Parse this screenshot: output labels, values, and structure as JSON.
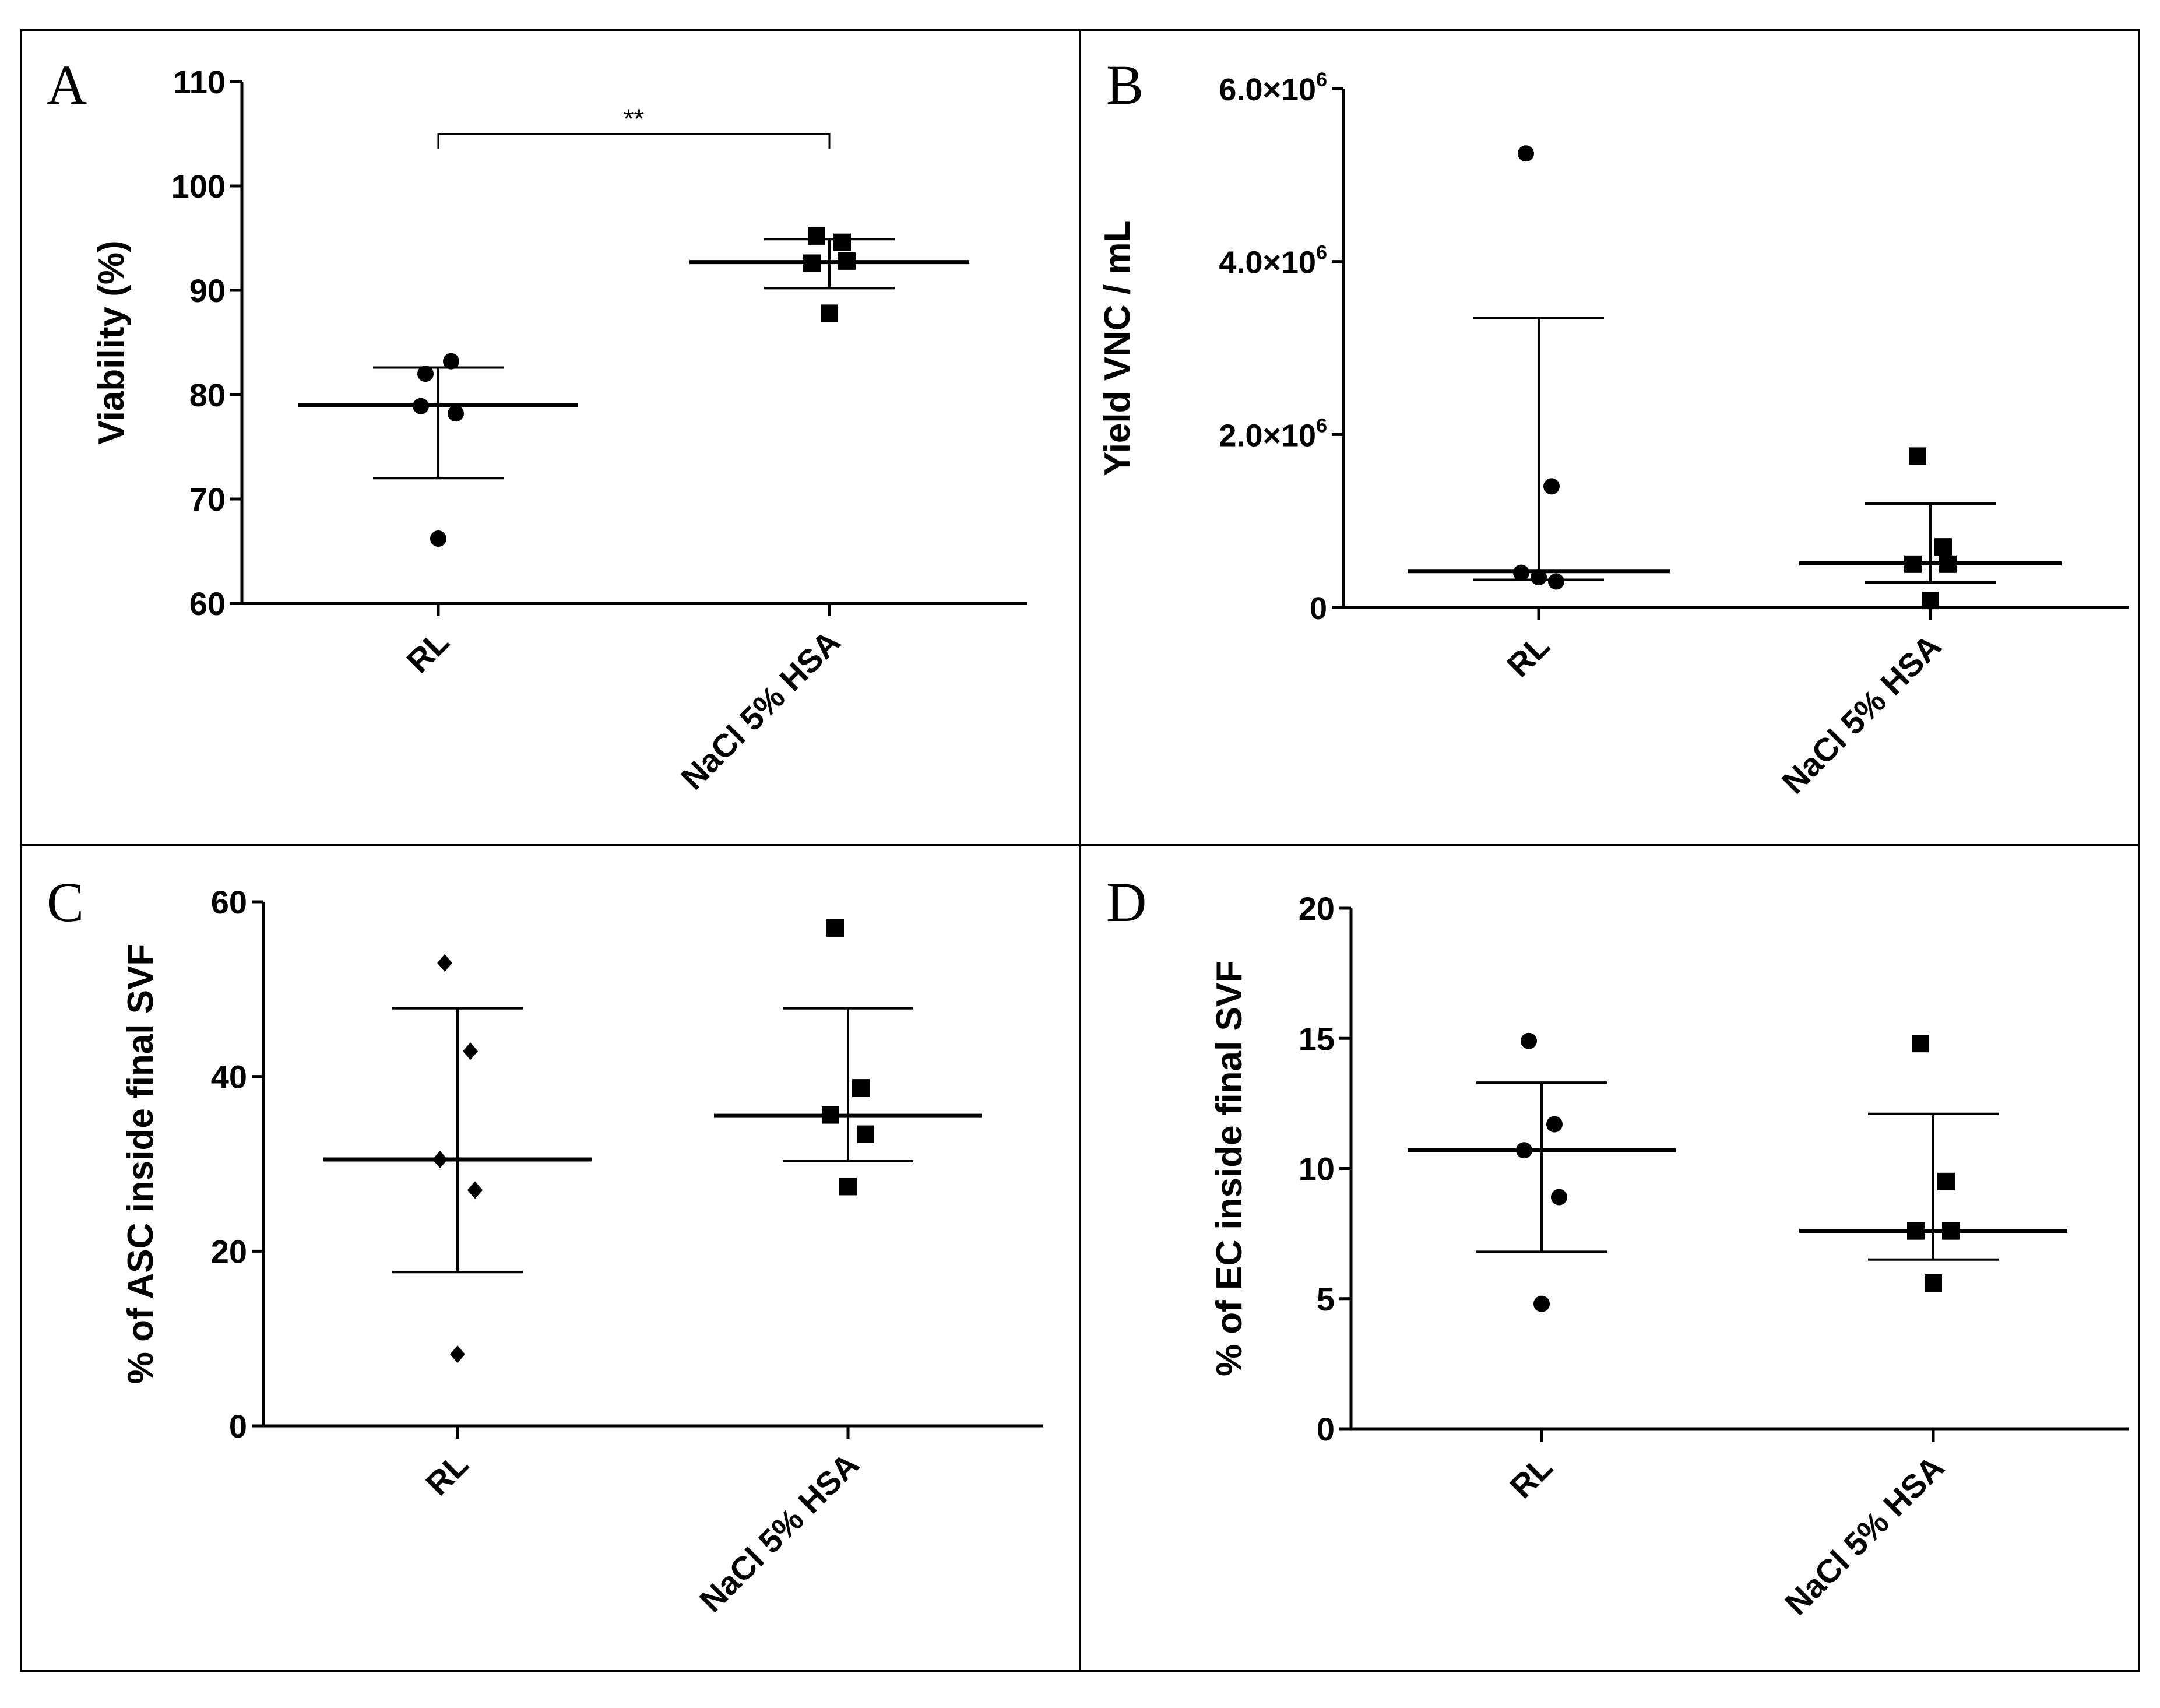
{
  "figure": {
    "panels": [
      "A",
      "B",
      "C",
      "D"
    ]
  },
  "chart_data": [
    {
      "panel": "A",
      "type": "scatter",
      "ylabel": "Viability (%)",
      "xlabel": "",
      "categories": [
        "RL",
        "NaCl 5% HSA"
      ],
      "ylim": [
        60,
        110
      ],
      "yticks": [
        60,
        70,
        80,
        90,
        100,
        110
      ],
      "ytick_labels": [
        "60",
        "70",
        "80",
        "90",
        "100",
        "110"
      ],
      "marker_shapes": [
        "circle",
        "square"
      ],
      "points": [
        [
          82.0,
          83.2,
          78.9,
          78.2,
          66.2
        ],
        [
          95.2,
          94.6,
          92.6,
          92.8,
          87.8
        ]
      ],
      "summary": [
        {
          "center": 79.0,
          "lower": 72.0,
          "upper": 82.6
        },
        {
          "center": 92.7,
          "lower": 90.2,
          "upper": 94.9
        }
      ],
      "annotation": {
        "text": "**",
        "between": [
          0,
          1
        ],
        "y": 105
      }
    },
    {
      "panel": "B",
      "type": "scatter",
      "ylabel": "Yield VNC / mL",
      "xlabel": "",
      "categories": [
        "RL",
        "NaCl 5% HSA"
      ],
      "ylim": [
        0,
        6000000
      ],
      "yticks": [
        0,
        2000000,
        4000000,
        6000000
      ],
      "ytick_mantissas": [
        "0",
        "2.0×10",
        "4.0×10",
        "6.0×10"
      ],
      "ytick_exponents": [
        "",
        "6",
        "6",
        "6"
      ],
      "marker_shapes": [
        "circle",
        "square"
      ],
      "points": [
        [
          5250000,
          1400000,
          400000,
          300000,
          350000
        ],
        [
          1750000,
          700000,
          500000,
          500000,
          80000
        ]
      ],
      "summary": [
        {
          "center": 420000,
          "lower": 320000,
          "upper": 3350000
        },
        {
          "center": 510000,
          "lower": 290000,
          "upper": 1200000
        }
      ]
    },
    {
      "panel": "C",
      "type": "scatter",
      "ylabel": "% of ASC inside final SVF",
      "xlabel": "",
      "categories": [
        "RL",
        "NaCl 5% HSA"
      ],
      "ylim": [
        0,
        60
      ],
      "yticks": [
        0,
        20,
        40,
        60
      ],
      "ytick_labels": [
        "0",
        "20",
        "40",
        "60"
      ],
      "marker_shapes": [
        "diamond",
        "square"
      ],
      "points": [
        [
          53.0,
          42.9,
          30.5,
          27.0,
          8.2
        ],
        [
          57.0,
          38.7,
          35.6,
          33.4,
          27.4
        ]
      ],
      "summary": [
        {
          "center": 30.5,
          "lower": 17.6,
          "upper": 47.8
        },
        {
          "center": 35.5,
          "lower": 30.3,
          "upper": 47.8
        }
      ]
    },
    {
      "panel": "D",
      "type": "scatter",
      "ylabel": "% of EC inside final SVF",
      "xlabel": "",
      "categories": [
        "RL",
        "NaCl 5% HSA"
      ],
      "ylim": [
        0,
        20
      ],
      "yticks": [
        0,
        5,
        10,
        15,
        20
      ],
      "ytick_labels": [
        "0",
        "5",
        "10",
        "15",
        "20"
      ],
      "marker_shapes": [
        "circle",
        "square"
      ],
      "points": [
        [
          14.9,
          11.7,
          10.7,
          8.9,
          4.8
        ],
        [
          14.8,
          9.5,
          7.6,
          7.6,
          5.6
        ]
      ],
      "summary": [
        {
          "center": 10.7,
          "lower": 6.8,
          "upper": 13.3
        },
        {
          "center": 7.6,
          "lower": 6.5,
          "upper": 12.1
        }
      ]
    }
  ],
  "colors": {
    "ink": "#000000",
    "background": "#ffffff",
    "border": "#000000"
  }
}
